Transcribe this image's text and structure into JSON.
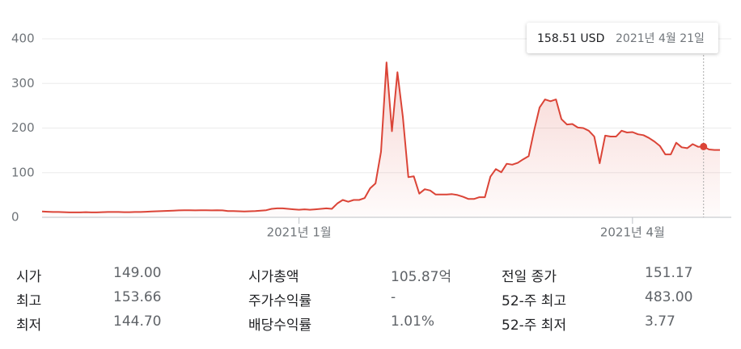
{
  "chart_data": {
    "type": "line",
    "values": [
      13,
      12.5,
      12,
      12,
      11.5,
      11,
      11,
      11,
      11.5,
      11,
      11,
      11.5,
      12,
      12,
      12,
      11.5,
      11.5,
      12,
      12,
      12.5,
      13,
      13.5,
      14,
      14.5,
      15,
      15.5,
      16,
      16,
      15.5,
      16,
      16,
      15.5,
      16,
      15.5,
      14,
      14,
      13.5,
      13,
      13.5,
      14,
      15,
      16,
      19,
      20,
      20,
      19,
      18,
      17,
      18,
      17,
      18,
      19,
      20,
      19,
      31,
      39,
      35,
      39,
      39,
      43,
      65,
      76,
      147,
      347,
      193,
      325,
      225,
      90,
      92,
      53,
      63,
      60,
      51,
      51,
      51,
      52,
      50,
      46,
      41,
      41,
      45,
      45,
      91,
      108,
      101,
      120,
      118,
      122,
      130,
      137,
      194,
      246,
      264,
      260,
      264,
      220,
      208,
      209,
      201,
      200,
      194,
      181,
      121,
      183,
      181,
      181,
      194,
      190,
      191,
      186,
      184,
      178,
      170,
      160,
      141,
      141,
      167,
      157,
      155,
      164,
      158,
      158.51,
      152,
      151,
      151
    ],
    "color": "#db4437",
    "ylim": [
      0,
      400
    ],
    "yticks": [
      0,
      100,
      200,
      300,
      400
    ],
    "grid": true,
    "xticks": [
      {
        "value": 47,
        "label": "2021년 1월"
      },
      {
        "value": 108,
        "label": "2021년 4월"
      }
    ],
    "tooltip": {
      "value": 158.51,
      "value_label": "158.51 USD",
      "date": "2021년 4월 21일"
    }
  },
  "stats": [
    [
      {
        "label": "시가",
        "value": "149.00"
      },
      {
        "label": "시가총액",
        "value": "105.87억"
      },
      {
        "label": "전일 종가",
        "value": "151.17"
      }
    ],
    [
      {
        "label": "최고",
        "value": "153.66"
      },
      {
        "label": "주가수익률",
        "value": "-"
      },
      {
        "label": "52-주 최고",
        "value": "483.00"
      }
    ],
    [
      {
        "label": "최저",
        "value": "144.70"
      },
      {
        "label": "배당수익률",
        "value": "1.01%"
      },
      {
        "label": "52-주 최저",
        "value": "3.77"
      }
    ]
  ]
}
